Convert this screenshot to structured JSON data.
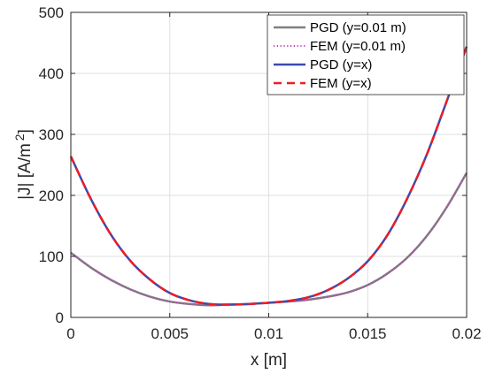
{
  "chart_data": {
    "type": "line",
    "xlabel": "x [m]",
    "ylabel_main": "|J| [A/m",
    "ylabel_sup": "2",
    "ylabel_close": "]",
    "xlim": [
      0,
      0.02
    ],
    "ylim": [
      0,
      500
    ],
    "xticks": [
      0,
      0.005,
      0.01,
      0.015,
      0.02
    ],
    "xtick_labels": [
      "0",
      "0.005",
      "0.01",
      "0.015",
      "0.02"
    ],
    "yticks": [
      0,
      100,
      200,
      300,
      400,
      500
    ],
    "ytick_labels": [
      "0",
      "100",
      "200",
      "300",
      "400",
      "500"
    ],
    "grid": true,
    "legend_position": "top-right",
    "x": [
      0,
      0.001,
      0.002,
      0.003,
      0.004,
      0.005,
      0.006,
      0.007,
      0.008,
      0.009,
      0.01,
      0.011,
      0.012,
      0.013,
      0.014,
      0.015,
      0.016,
      0.017,
      0.018,
      0.019,
      0.02
    ],
    "series": [
      {
        "name": "PGD (y=0.01 m)",
        "color": "#7f7f7f",
        "style": "solid",
        "values": [
          106,
          82,
          62,
          46,
          34,
          26,
          22,
          20,
          21,
          22,
          24,
          26,
          29,
          34,
          41,
          53,
          72,
          98,
          134,
          181,
          237
        ]
      },
      {
        "name": "FEM (y=0.01 m)",
        "color": "#bf3fbf",
        "style": "dotted",
        "values": [
          106,
          82,
          62,
          46,
          34,
          26,
          22,
          20,
          21,
          22,
          24,
          26,
          29,
          34,
          41,
          53,
          72,
          98,
          134,
          181,
          237
        ]
      },
      {
        "name": "PGD (y=x)",
        "color": "#3b4aaf",
        "style": "solid",
        "values": [
          264,
          195,
          137,
          93,
          62,
          40,
          28,
          22,
          21,
          22,
          24,
          27,
          33,
          45,
          64,
          92,
          135,
          195,
          268,
          355,
          444
        ]
      },
      {
        "name": "FEM (y=x)",
        "color": "#ee1c25",
        "style": "dashed",
        "values": [
          264,
          195,
          137,
          93,
          62,
          40,
          28,
          22,
          21,
          22,
          24,
          27,
          33,
          45,
          64,
          92,
          135,
          195,
          268,
          355,
          444
        ]
      }
    ]
  }
}
